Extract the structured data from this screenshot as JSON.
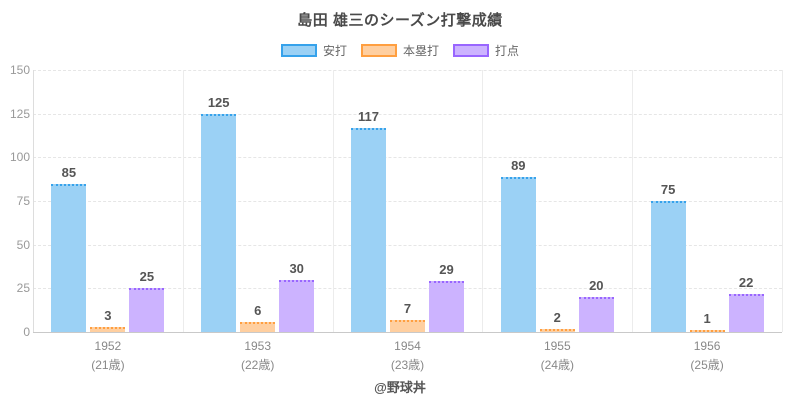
{
  "title": "島田 雄三のシーズン打撃成績",
  "footer": "@野球丼",
  "chart_data": {
    "type": "bar",
    "title": "島田 雄三のシーズン打撃成績",
    "categories": [
      "1952",
      "1953",
      "1954",
      "1955",
      "1956"
    ],
    "category_sublabels": [
      "(21歳)",
      "(22歳)",
      "(23歳)",
      "(24歳)",
      "(25歳)"
    ],
    "series": [
      {
        "key": "hits",
        "name": "安打",
        "values": [
          85,
          125,
          117,
          89,
          75
        ],
        "fill": "#9BD1F5",
        "border": "#36A2EB"
      },
      {
        "key": "home-runs",
        "name": "本塁打",
        "values": [
          3,
          6,
          7,
          2,
          1
        ],
        "fill": "#FFCFA0",
        "border": "#FF9F40"
      },
      {
        "key": "rbi",
        "name": "打点",
        "values": [
          25,
          30,
          29,
          20,
          22
        ],
        "fill": "#CCB3FF",
        "border": "#9966FF"
      }
    ],
    "ylim": [
      0,
      150
    ],
    "yticks": [
      0,
      25,
      50,
      75,
      100,
      125,
      150
    ],
    "grid": true,
    "legend_position": "top",
    "value_labels": true,
    "xlabel": "",
    "ylabel": ""
  }
}
